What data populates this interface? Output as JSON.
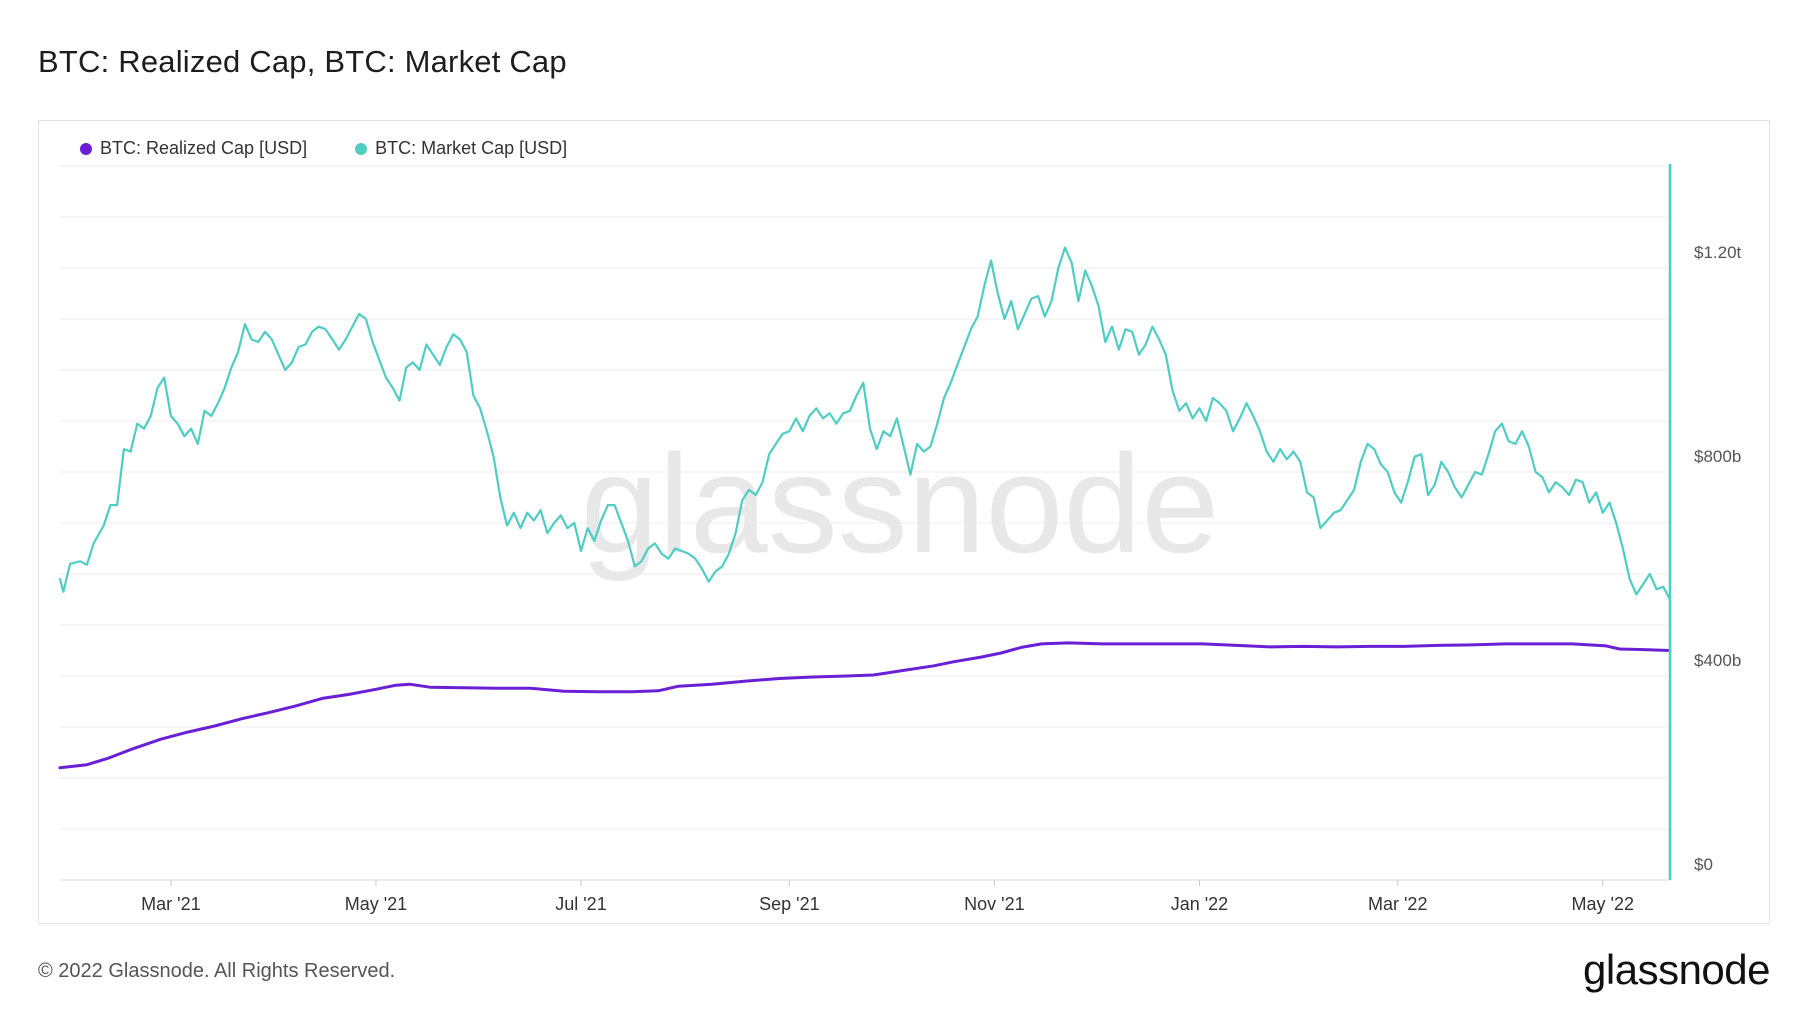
{
  "title": "BTC: Realized Cap, BTC: Market Cap",
  "footer": "© 2022 Glassnode. All Rights Reserved.",
  "brand": "glassnode",
  "watermark": "glassnode",
  "colors": {
    "realized": "#6a1fd6",
    "market": "#4ecdc4",
    "grid": "#ececec",
    "watermark": "#e8e8e8"
  },
  "legend": [
    {
      "label": "BTC: Realized Cap [USD]",
      "color": "#6a1fd6"
    },
    {
      "label": "BTC: Market Cap [USD]",
      "color": "#4ecdc4"
    }
  ],
  "chart_data": {
    "type": "line",
    "title": "BTC: Realized Cap, BTC: Market Cap",
    "xlabel": "",
    "ylabel": "",
    "x_range_days": [
      0,
      479
    ],
    "y_unit": "billion USD",
    "ylim": [
      0,
      1400
    ],
    "y_ticks": [
      {
        "value": 0,
        "label": "$0"
      },
      {
        "value": 400,
        "label": "$400b"
      },
      {
        "value": 800,
        "label": "$800b"
      },
      {
        "value": 1200,
        "label": "$1.20t"
      }
    ],
    "x_ticks": [
      {
        "day": 33,
        "label": "Mar '21"
      },
      {
        "day": 94,
        "label": "May '21"
      },
      {
        "day": 155,
        "label": "Jul '21"
      },
      {
        "day": 217,
        "label": "Sep '21"
      },
      {
        "day": 278,
        "label": "Nov '21"
      },
      {
        "day": 339,
        "label": "Jan '22"
      },
      {
        "day": 398,
        "label": "Mar '22"
      },
      {
        "day": 459,
        "label": "May '22"
      }
    ],
    "series": [
      {
        "name": "BTC: Realized Cap [USD]",
        "color": "#6a1fd6",
        "points": [
          [
            0,
            220
          ],
          [
            8,
            226
          ],
          [
            14,
            238
          ],
          [
            22,
            258
          ],
          [
            30,
            276
          ],
          [
            38,
            290
          ],
          [
            46,
            302
          ],
          [
            54,
            316
          ],
          [
            62,
            328
          ],
          [
            70,
            341
          ],
          [
            78,
            356
          ],
          [
            86,
            364
          ],
          [
            94,
            374
          ],
          [
            100,
            382
          ],
          [
            104,
            384
          ],
          [
            110,
            378
          ],
          [
            120,
            377
          ],
          [
            130,
            376
          ],
          [
            140,
            376
          ],
          [
            150,
            370
          ],
          [
            160,
            369
          ],
          [
            170,
            369
          ],
          [
            178,
            371
          ],
          [
            184,
            380
          ],
          [
            194,
            384
          ],
          [
            204,
            390
          ],
          [
            214,
            395
          ],
          [
            224,
            398
          ],
          [
            234,
            400
          ],
          [
            242,
            402
          ],
          [
            250,
            410
          ],
          [
            260,
            420
          ],
          [
            266,
            428
          ],
          [
            274,
            437
          ],
          [
            280,
            445
          ],
          [
            286,
            456
          ],
          [
            292,
            463
          ],
          [
            300,
            465
          ],
          [
            310,
            463
          ],
          [
            320,
            463
          ],
          [
            330,
            463
          ],
          [
            340,
            463
          ],
          [
            350,
            460
          ],
          [
            360,
            457
          ],
          [
            370,
            458
          ],
          [
            380,
            457
          ],
          [
            390,
            458
          ],
          [
            400,
            458
          ],
          [
            410,
            460
          ],
          [
            420,
            461
          ],
          [
            430,
            463
          ],
          [
            440,
            463
          ],
          [
            450,
            463
          ],
          [
            460,
            459
          ],
          [
            464,
            453
          ],
          [
            470,
            452
          ],
          [
            479,
            450
          ]
        ]
      },
      {
        "name": "BTC: Market Cap [USD]",
        "color": "#4ecdc4",
        "points": [
          [
            0,
            590
          ],
          [
            1,
            565
          ],
          [
            3,
            620
          ],
          [
            6,
            625
          ],
          [
            8,
            618
          ],
          [
            10,
            660
          ],
          [
            13,
            695
          ],
          [
            15,
            735
          ],
          [
            17,
            735
          ],
          [
            19,
            845
          ],
          [
            21,
            840
          ],
          [
            23,
            895
          ],
          [
            25,
            885
          ],
          [
            27,
            910
          ],
          [
            29,
            965
          ],
          [
            31,
            985
          ],
          [
            33,
            910
          ],
          [
            35,
            895
          ],
          [
            37,
            870
          ],
          [
            39,
            885
          ],
          [
            41,
            855
          ],
          [
            43,
            920
          ],
          [
            45,
            910
          ],
          [
            47,
            935
          ],
          [
            49,
            965
          ],
          [
            51,
            1005
          ],
          [
            53,
            1035
          ],
          [
            55,
            1090
          ],
          [
            57,
            1060
          ],
          [
            59,
            1055
          ],
          [
            61,
            1075
          ],
          [
            63,
            1060
          ],
          [
            65,
            1030
          ],
          [
            67,
            1000
          ],
          [
            69,
            1015
          ],
          [
            71,
            1045
          ],
          [
            73,
            1050
          ],
          [
            75,
            1075
          ],
          [
            77,
            1085
          ],
          [
            79,
            1080
          ],
          [
            81,
            1060
          ],
          [
            83,
            1040
          ],
          [
            85,
            1060
          ],
          [
            87,
            1085
          ],
          [
            89,
            1110
          ],
          [
            91,
            1100
          ],
          [
            93,
            1055
          ],
          [
            95,
            1020
          ],
          [
            97,
            985
          ],
          [
            99,
            965
          ],
          [
            101,
            940
          ],
          [
            103,
            1005
          ],
          [
            105,
            1015
          ],
          [
            107,
            1000
          ],
          [
            109,
            1050
          ],
          [
            111,
            1030
          ],
          [
            113,
            1010
          ],
          [
            115,
            1045
          ],
          [
            117,
            1070
          ],
          [
            119,
            1060
          ],
          [
            121,
            1035
          ],
          [
            123,
            950
          ],
          [
            125,
            925
          ],
          [
            127,
            880
          ],
          [
            129,
            830
          ],
          [
            131,
            750
          ],
          [
            133,
            695
          ],
          [
            135,
            720
          ],
          [
            137,
            690
          ],
          [
            139,
            720
          ],
          [
            141,
            705
          ],
          [
            143,
            725
          ],
          [
            145,
            680
          ],
          [
            147,
            700
          ],
          [
            149,
            715
          ],
          [
            151,
            690
          ],
          [
            153,
            700
          ],
          [
            155,
            645
          ],
          [
            157,
            690
          ],
          [
            159,
            665
          ],
          [
            161,
            705
          ],
          [
            163,
            735
          ],
          [
            165,
            735
          ],
          [
            167,
            700
          ],
          [
            169,
            665
          ],
          [
            171,
            615
          ],
          [
            173,
            625
          ],
          [
            175,
            650
          ],
          [
            177,
            660
          ],
          [
            179,
            640
          ],
          [
            181,
            630
          ],
          [
            183,
            650
          ],
          [
            185,
            645
          ],
          [
            187,
            640
          ],
          [
            189,
            630
          ],
          [
            191,
            610
          ],
          [
            193,
            585
          ],
          [
            195,
            605
          ],
          [
            197,
            615
          ],
          [
            199,
            640
          ],
          [
            201,
            680
          ],
          [
            203,
            745
          ],
          [
            205,
            765
          ],
          [
            207,
            755
          ],
          [
            209,
            780
          ],
          [
            211,
            835
          ],
          [
            213,
            855
          ],
          [
            215,
            875
          ],
          [
            217,
            880
          ],
          [
            219,
            905
          ],
          [
            221,
            880
          ],
          [
            223,
            910
          ],
          [
            225,
            925
          ],
          [
            227,
            905
          ],
          [
            229,
            915
          ],
          [
            231,
            895
          ],
          [
            233,
            915
          ],
          [
            235,
            920
          ],
          [
            237,
            950
          ],
          [
            239,
            975
          ],
          [
            241,
            885
          ],
          [
            243,
            845
          ],
          [
            245,
            880
          ],
          [
            247,
            870
          ],
          [
            249,
            905
          ],
          [
            251,
            850
          ],
          [
            253,
            795
          ],
          [
            255,
            855
          ],
          [
            257,
            840
          ],
          [
            259,
            850
          ],
          [
            261,
            895
          ],
          [
            263,
            945
          ],
          [
            265,
            975
          ],
          [
            267,
            1010
          ],
          [
            269,
            1045
          ],
          [
            271,
            1080
          ],
          [
            273,
            1105
          ],
          [
            275,
            1165
          ],
          [
            277,
            1215
          ],
          [
            279,
            1150
          ],
          [
            281,
            1100
          ],
          [
            283,
            1135
          ],
          [
            285,
            1080
          ],
          [
            287,
            1110
          ],
          [
            289,
            1140
          ],
          [
            291,
            1145
          ],
          [
            293,
            1105
          ],
          [
            295,
            1135
          ],
          [
            297,
            1200
          ],
          [
            299,
            1240
          ],
          [
            301,
            1210
          ],
          [
            303,
            1135
          ],
          [
            305,
            1195
          ],
          [
            307,
            1165
          ],
          [
            309,
            1125
          ],
          [
            311,
            1055
          ],
          [
            313,
            1085
          ],
          [
            315,
            1040
          ],
          [
            317,
            1080
          ],
          [
            319,
            1075
          ],
          [
            321,
            1030
          ],
          [
            323,
            1050
          ],
          [
            325,
            1085
          ],
          [
            327,
            1060
          ],
          [
            329,
            1030
          ],
          [
            331,
            960
          ],
          [
            333,
            920
          ],
          [
            335,
            935
          ],
          [
            337,
            905
          ],
          [
            339,
            925
          ],
          [
            341,
            900
          ],
          [
            343,
            945
          ],
          [
            345,
            935
          ],
          [
            347,
            920
          ],
          [
            349,
            880
          ],
          [
            351,
            905
          ],
          [
            353,
            935
          ],
          [
            355,
            910
          ],
          [
            357,
            880
          ],
          [
            359,
            840
          ],
          [
            361,
            820
          ],
          [
            363,
            845
          ],
          [
            365,
            825
          ],
          [
            367,
            840
          ],
          [
            369,
            820
          ],
          [
            371,
            760
          ],
          [
            373,
            750
          ],
          [
            375,
            690
          ],
          [
            377,
            705
          ],
          [
            379,
            720
          ],
          [
            381,
            725
          ],
          [
            383,
            745
          ],
          [
            385,
            765
          ],
          [
            387,
            820
          ],
          [
            389,
            855
          ],
          [
            391,
            845
          ],
          [
            393,
            815
          ],
          [
            395,
            800
          ],
          [
            397,
            760
          ],
          [
            399,
            740
          ],
          [
            401,
            780
          ],
          [
            403,
            830
          ],
          [
            405,
            835
          ],
          [
            407,
            755
          ],
          [
            409,
            775
          ],
          [
            411,
            820
          ],
          [
            413,
            800
          ],
          [
            415,
            770
          ],
          [
            417,
            750
          ],
          [
            419,
            775
          ],
          [
            421,
            800
          ],
          [
            423,
            795
          ],
          [
            425,
            835
          ],
          [
            427,
            880
          ],
          [
            429,
            895
          ],
          [
            431,
            860
          ],
          [
            433,
            855
          ],
          [
            435,
            880
          ],
          [
            437,
            850
          ],
          [
            439,
            800
          ],
          [
            441,
            790
          ],
          [
            443,
            760
          ],
          [
            445,
            780
          ],
          [
            447,
            770
          ],
          [
            449,
            755
          ],
          [
            451,
            785
          ],
          [
            453,
            780
          ],
          [
            455,
            740
          ],
          [
            457,
            760
          ],
          [
            459,
            720
          ],
          [
            461,
            740
          ],
          [
            463,
            700
          ],
          [
            465,
            650
          ],
          [
            467,
            590
          ],
          [
            469,
            560
          ],
          [
            471,
            580
          ],
          [
            473,
            600
          ],
          [
            475,
            570
          ],
          [
            477,
            575
          ],
          [
            479,
            550
          ]
        ]
      }
    ]
  }
}
